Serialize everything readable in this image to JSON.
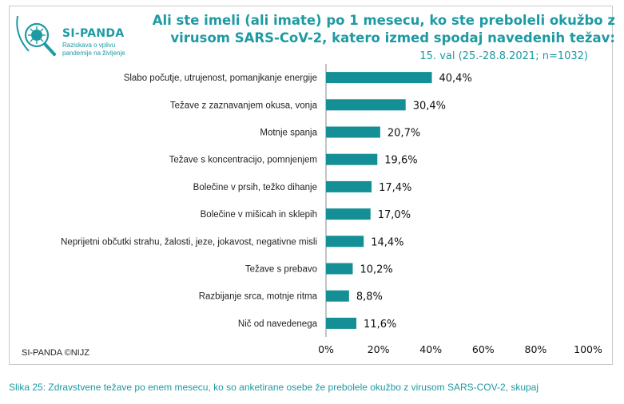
{
  "logo": {
    "name": "SI-PANDA",
    "subtitle": "Raziskava o vplivu pandemije na življenje"
  },
  "credit": "SI-PANDA ©NIJZ",
  "caption": "Slika 25: Zdravstvene težave po enem mesecu, ko so anketirane osebe že prebolele okužbo z virusom SARS-COV-2, skupaj",
  "colors": {
    "bar": "#138f95",
    "accent": "#1e9aa3"
  },
  "chart_data": {
    "type": "bar",
    "orientation": "horizontal",
    "title": "Ali ste imeli (ali imate) po 1 mesecu, ko ste preboleli okužbo z virusom SARS-CoV-2, katero izmed spodaj navedenih težav:",
    "subtitle": "15. val (25.-28.8.2021; n=1032)",
    "categories": [
      "Slabo počutje, utrujenost, pomanjkanje energije",
      "Težave z zaznavanjem okusa, vonja",
      "Motnje spanja",
      "Težave s koncentracijo, pomnjenjem",
      "Bolečine v prsih, težko dihanje",
      "Bolečine v mišicah in sklepih",
      "Neprijetni občutki strahu, žalosti, jeze, jokavost, negativne misli",
      "Težave s prebavo",
      "Razbijanje srca, motnje ritma",
      "Nič od navedenega"
    ],
    "values": [
      40.4,
      30.4,
      20.7,
      19.6,
      17.4,
      17.0,
      14.4,
      10.2,
      8.8,
      11.6
    ],
    "value_labels": [
      "40,4%",
      "30,4%",
      "20,7%",
      "19,6%",
      "17,4%",
      "17,0%",
      "14,4%",
      "10,2%",
      "8,8%",
      "11,6%"
    ],
    "xlim": [
      0,
      100
    ],
    "xticks": [
      0,
      20,
      40,
      60,
      80,
      100
    ],
    "xtick_labels": [
      "0%",
      "20%",
      "40%",
      "60%",
      "80%",
      "100%"
    ],
    "grid": false
  }
}
